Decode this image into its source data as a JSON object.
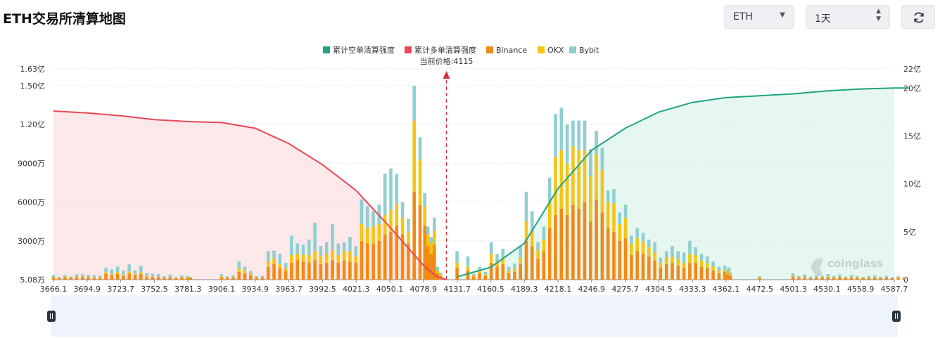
{
  "header": {
    "title": "ETH交易所清算地图",
    "symbol_select": "ETH",
    "range_select": "1天"
  },
  "watermark": "coinglass",
  "current_price_label": "当前价格:4115",
  "colors": {
    "short_cum": "#1fa383",
    "long_cum": "#e84755",
    "binance": "#f28a16",
    "okx": "#f5c515",
    "bybit": "#8fcfd0",
    "short_area": "#e6f6f0",
    "long_area": "#fde8ea"
  },
  "chart_data": {
    "type": "bar",
    "legend": [
      "累计空单清算强度",
      "累计多单清算强度",
      "Binance",
      "OKX",
      "Bybit"
    ],
    "legend_position": "top-center",
    "current_price": 4115,
    "x_ticks": [
      "3666.1",
      "3694.9",
      "3723.7",
      "3752.5",
      "3781.3",
      "3906.1",
      "3934.9",
      "3963.7",
      "3992.5",
      "4021.3",
      "4050.1",
      "4078.9",
      "4131.7",
      "4160.5",
      "4189.3",
      "4218.1",
      "4246.9",
      "4275.7",
      "4304.5",
      "4333.3",
      "4362.1",
      "4472.5",
      "4501.3",
      "4530.1",
      "4558.9",
      "4587.7"
    ],
    "y_left_ticks": [
      "1.63亿",
      "1.50亿",
      "1.20亿",
      "9000万",
      "6000万",
      "3000万",
      "5.08万"
    ],
    "y_left_range": [
      0.0508,
      16300
    ],
    "y_right_ticks": [
      "22亿",
      "20亿",
      "15亿",
      "10亿",
      "5亿",
      "0"
    ],
    "y_right_range": [
      0,
      22
    ],
    "bars_unit": "万",
    "bars": [
      {
        "x": 3666.1,
        "binance": 180,
        "okx": 40,
        "bybit": 150
      },
      {
        "x": 3671,
        "binance": 120,
        "okx": 30,
        "bybit": 80
      },
      {
        "x": 3676,
        "binance": 200,
        "okx": 50,
        "bybit": 120
      },
      {
        "x": 3681,
        "binance": 150,
        "okx": 40,
        "bybit": 60
      },
      {
        "x": 3686,
        "binance": 200,
        "okx": 60,
        "bybit": 160
      },
      {
        "x": 3691,
        "binance": 220,
        "okx": 60,
        "bybit": 140
      },
      {
        "x": 3696,
        "binance": 180,
        "okx": 50,
        "bybit": 150
      },
      {
        "x": 3701,
        "binance": 160,
        "okx": 50,
        "bybit": 140
      },
      {
        "x": 3706,
        "binance": 150,
        "okx": 40,
        "bybit": 120
      },
      {
        "x": 3711,
        "binance": 450,
        "okx": 120,
        "bybit": 350
      },
      {
        "x": 3716,
        "binance": 350,
        "okx": 100,
        "bybit": 350
      },
      {
        "x": 3721,
        "binance": 450,
        "okx": 120,
        "bybit": 450
      },
      {
        "x": 3726,
        "binance": 300,
        "okx": 100,
        "bybit": 300
      },
      {
        "x": 3731,
        "binance": 480,
        "okx": 150,
        "bybit": 550
      },
      {
        "x": 3736,
        "binance": 350,
        "okx": 100,
        "bybit": 280
      },
      {
        "x": 3741,
        "binance": 450,
        "okx": 120,
        "bybit": 500
      },
      {
        "x": 3746,
        "binance": 230,
        "okx": 60,
        "bybit": 200
      },
      {
        "x": 3751,
        "binance": 200,
        "okx": 60,
        "bybit": 200
      },
      {
        "x": 3756,
        "binance": 180,
        "okx": 50,
        "bybit": 200
      },
      {
        "x": 3761,
        "binance": 130,
        "okx": 40,
        "bybit": 100
      },
      {
        "x": 3766,
        "binance": 180,
        "okx": 50,
        "bybit": 150
      },
      {
        "x": 3771,
        "binance": 110,
        "okx": 30,
        "bybit": 60
      },
      {
        "x": 3776,
        "binance": 170,
        "okx": 50,
        "bybit": 120
      },
      {
        "x": 3781,
        "binance": 150,
        "okx": 40,
        "bybit": 100
      },
      {
        "x": 3791,
        "binance": 130,
        "okx": 30,
        "bybit": 60
      },
      {
        "x": 3906,
        "binance": 200,
        "okx": 60,
        "bybit": 180
      },
      {
        "x": 3911,
        "binance": 130,
        "okx": 40,
        "bybit": 80
      },
      {
        "x": 3916,
        "binance": 180,
        "okx": 50,
        "bybit": 120
      },
      {
        "x": 3921,
        "binance": 600,
        "okx": 250,
        "bybit": 550
      },
      {
        "x": 3926,
        "binance": 500,
        "okx": 200,
        "bybit": 300
      },
      {
        "x": 3931,
        "binance": 350,
        "okx": 100,
        "bybit": 200
      },
      {
        "x": 3936,
        "binance": 150,
        "okx": 40,
        "bybit": 80
      },
      {
        "x": 3941,
        "binance": 170,
        "okx": 50,
        "bybit": 80
      },
      {
        "x": 3946,
        "binance": 1000,
        "okx": 400,
        "bybit": 800
      },
      {
        "x": 3951,
        "binance": 1200,
        "okx": 450,
        "bybit": 600
      },
      {
        "x": 3956,
        "binance": 900,
        "okx": 300,
        "bybit": 800
      },
      {
        "x": 3961,
        "binance": 700,
        "okx": 200,
        "bybit": 400
      },
      {
        "x": 3966,
        "binance": 1300,
        "okx": 600,
        "bybit": 1500
      },
      {
        "x": 3971,
        "binance": 1500,
        "okx": 500,
        "bybit": 800
      },
      {
        "x": 3976,
        "binance": 1400,
        "okx": 500,
        "bybit": 800
      },
      {
        "x": 3981,
        "binance": 1300,
        "okx": 600,
        "bybit": 1200
      },
      {
        "x": 3986,
        "binance": 1500,
        "okx": 700,
        "bybit": 2200
      },
      {
        "x": 3991,
        "binance": 1200,
        "okx": 600,
        "bybit": 800
      },
      {
        "x": 3996,
        "binance": 1300,
        "okx": 700,
        "bybit": 900
      },
      {
        "x": 4001,
        "binance": 1500,
        "okx": 800,
        "bybit": 2000
      },
      {
        "x": 4006,
        "binance": 1300,
        "okx": 600,
        "bybit": 900
      },
      {
        "x": 4011,
        "binance": 1500,
        "okx": 700,
        "bybit": 700
      },
      {
        "x": 4016,
        "binance": 1400,
        "okx": 800,
        "bybit": 1100
      },
      {
        "x": 4021,
        "binance": 1300,
        "okx": 500,
        "bybit": 800
      },
      {
        "x": 4026,
        "binance": 3000,
        "okx": 1300,
        "bybit": 1900
      },
      {
        "x": 4031,
        "binance": 2800,
        "okx": 1200,
        "bybit": 1700
      },
      {
        "x": 4036,
        "binance": 2800,
        "okx": 1300,
        "bybit": 1200
      },
      {
        "x": 4041,
        "binance": 3000,
        "okx": 1300,
        "bybit": 1500
      },
      {
        "x": 4046,
        "binance": 3500,
        "okx": 1500,
        "bybit": 3200
      },
      {
        "x": 4051,
        "binance": 3700,
        "okx": 1700,
        "bybit": 3200
      },
      {
        "x": 4056,
        "binance": 4200,
        "okx": 1700,
        "bybit": 2300
      },
      {
        "x": 4061,
        "binance": 3500,
        "okx": 1300,
        "bybit": 1200
      },
      {
        "x": 4066,
        "binance": 2800,
        "okx": 900,
        "bybit": 1000
      },
      {
        "x": 4071,
        "binance": 6800,
        "okx": 5500,
        "bybit": 2700
      },
      {
        "x": 4076,
        "binance": 5800,
        "okx": 3500,
        "bybit": 1700
      },
      {
        "x": 4081,
        "binance": 4200,
        "okx": 1500,
        "bybit": 1000
      },
      {
        "x": 4086,
        "binance": 2600,
        "okx": 900,
        "bybit": 600
      },
      {
        "x": 4091,
        "binance": 2000,
        "okx": 800,
        "bybit": 500
      },
      {
        "x": 4096,
        "binance": 2700,
        "okx": 1100,
        "bybit": 1000
      },
      {
        "x": 4101,
        "binance": 500,
        "okx": 200,
        "bybit": 300
      },
      {
        "x": 4106,
        "binance": 300,
        "okx": 100,
        "bybit": 150
      },
      {
        "x": 4131.7,
        "binance": 900,
        "okx": 400,
        "bybit": 900
      },
      {
        "x": 4141,
        "binance": 700,
        "okx": 300,
        "bybit": 800
      },
      {
        "x": 4146,
        "binance": 250,
        "okx": 100,
        "bybit": 100
      },
      {
        "x": 4151,
        "binance": 500,
        "okx": 200,
        "bybit": 300
      },
      {
        "x": 4156,
        "binance": 300,
        "okx": 100,
        "bybit": 200
      },
      {
        "x": 4161,
        "binance": 1300,
        "okx": 700,
        "bybit": 900
      },
      {
        "x": 4166,
        "binance": 1000,
        "okx": 400,
        "bybit": 600
      },
      {
        "x": 4171,
        "binance": 1200,
        "okx": 500,
        "bybit": 700
      },
      {
        "x": 4176,
        "binance": 500,
        "okx": 200,
        "bybit": 300
      },
      {
        "x": 4181,
        "binance": 600,
        "okx": 250,
        "bybit": 400
      },
      {
        "x": 4186,
        "binance": 1200,
        "okx": 500,
        "bybit": 900
      },
      {
        "x": 4191,
        "binance": 3000,
        "okx": 1500,
        "bybit": 2300
      },
      {
        "x": 4196,
        "binance": 2600,
        "okx": 1200,
        "bybit": 1500
      },
      {
        "x": 4201,
        "binance": 1600,
        "okx": 700,
        "bybit": 600
      },
      {
        "x": 4206,
        "binance": 2200,
        "okx": 900,
        "bybit": 1000
      },
      {
        "x": 4211,
        "binance": 4000,
        "okx": 2000,
        "bybit": 1900
      },
      {
        "x": 4216,
        "binance": 5000,
        "okx": 4500,
        "bybit": 3300
      },
      {
        "x": 4221,
        "binance": 5500,
        "okx": 4500,
        "bybit": 3300
      },
      {
        "x": 4226,
        "binance": 5000,
        "okx": 4000,
        "bybit": 3000
      },
      {
        "x": 4231,
        "binance": 5800,
        "okx": 4500,
        "bybit": 2000
      },
      {
        "x": 4236,
        "binance": 5500,
        "okx": 4500,
        "bybit": 2300
      },
      {
        "x": 4241,
        "binance": 6000,
        "okx": 4000,
        "bybit": 2300
      },
      {
        "x": 4246,
        "binance": 4500,
        "okx": 3500,
        "bybit": 2100
      },
      {
        "x": 4251,
        "binance": 6200,
        "okx": 3500,
        "bybit": 1800
      },
      {
        "x": 4256,
        "binance": 5200,
        "okx": 3300,
        "bybit": 1700
      },
      {
        "x": 4261,
        "binance": 4000,
        "okx": 2000,
        "bybit": 900
      },
      {
        "x": 4266,
        "binance": 3700,
        "okx": 2200,
        "bybit": 1100
      },
      {
        "x": 4271,
        "binance": 3000,
        "okx": 1300,
        "bybit": 900
      },
      {
        "x": 4276,
        "binance": 3200,
        "okx": 1600,
        "bybit": 1000
      },
      {
        "x": 4281,
        "binance": 1900,
        "okx": 900,
        "bybit": 600
      },
      {
        "x": 4286,
        "binance": 2200,
        "okx": 1000,
        "bybit": 800
      },
      {
        "x": 4291,
        "binance": 2000,
        "okx": 900,
        "bybit": 700
      },
      {
        "x": 4296,
        "binance": 1800,
        "okx": 700,
        "bybit": 600
      },
      {
        "x": 4301,
        "binance": 1500,
        "okx": 600,
        "bybit": 800
      },
      {
        "x": 4306,
        "binance": 900,
        "okx": 400,
        "bybit": 400
      },
      {
        "x": 4311,
        "binance": 1200,
        "okx": 500,
        "bybit": 500
      },
      {
        "x": 4316,
        "binance": 1300,
        "okx": 500,
        "bybit": 800
      },
      {
        "x": 4321,
        "binance": 1100,
        "okx": 500,
        "bybit": 600
      },
      {
        "x": 4326,
        "binance": 900,
        "okx": 400,
        "bybit": 800
      },
      {
        "x": 4331,
        "binance": 1300,
        "okx": 700,
        "bybit": 1000
      },
      {
        "x": 4336,
        "binance": 1300,
        "okx": 600,
        "bybit": 600
      },
      {
        "x": 4341,
        "binance": 1000,
        "okx": 500,
        "bybit": 500
      },
      {
        "x": 4346,
        "binance": 900,
        "okx": 400,
        "bybit": 500
      },
      {
        "x": 4351,
        "binance": 700,
        "okx": 300,
        "bybit": 400
      },
      {
        "x": 4356,
        "binance": 500,
        "okx": 200,
        "bybit": 300
      },
      {
        "x": 4361,
        "binance": 600,
        "okx": 200,
        "bybit": 300
      },
      {
        "x": 4366,
        "binance": 400,
        "okx": 150,
        "bybit": 200
      },
      {
        "x": 4371,
        "binance": 500,
        "okx": 150,
        "bybit": 300
      },
      {
        "x": 4376,
        "binance": 300,
        "okx": 100,
        "bybit": 150
      },
      {
        "x": 4472,
        "binance": 150,
        "okx": 40,
        "bybit": 80
      },
      {
        "x": 4501,
        "binance": 250,
        "okx": 60,
        "bybit": 180
      },
      {
        "x": 4506,
        "binance": 150,
        "okx": 40,
        "bybit": 80
      },
      {
        "x": 4511,
        "binance": 200,
        "okx": 60,
        "bybit": 150
      },
      {
        "x": 4516,
        "binance": 120,
        "okx": 30,
        "bybit": 80
      },
      {
        "x": 4521,
        "binance": 180,
        "okx": 50,
        "bybit": 120
      },
      {
        "x": 4526,
        "binance": 150,
        "okx": 40,
        "bybit": 100
      },
      {
        "x": 4531,
        "binance": 200,
        "okx": 60,
        "bybit": 180
      },
      {
        "x": 4536,
        "binance": 150,
        "okx": 40,
        "bybit": 100
      },
      {
        "x": 4541,
        "binance": 200,
        "okx": 50,
        "bybit": 150
      },
      {
        "x": 4546,
        "binance": 130,
        "okx": 30,
        "bybit": 80
      },
      {
        "x": 4551,
        "binance": 180,
        "okx": 50,
        "bybit": 130
      },
      {
        "x": 4556,
        "binance": 150,
        "okx": 40,
        "bybit": 100
      },
      {
        "x": 4561,
        "binance": 120,
        "okx": 30,
        "bybit": 70
      },
      {
        "x": 4566,
        "binance": 150,
        "okx": 40,
        "bybit": 100
      },
      {
        "x": 4571,
        "binance": 180,
        "okx": 50,
        "bybit": 100
      },
      {
        "x": 4576,
        "binance": 130,
        "okx": 30,
        "bybit": 80
      },
      {
        "x": 4581,
        "binance": 160,
        "okx": 40,
        "bybit": 100
      },
      {
        "x": 4586,
        "binance": 120,
        "okx": 30,
        "bybit": 60
      },
      {
        "x": 4591,
        "binance": 140,
        "okx": 40,
        "bybit": 80
      },
      {
        "x": 4596,
        "binance": 110,
        "okx": 30,
        "bybit": 60
      }
    ],
    "cum_long_unit": "亿",
    "cum_long": [
      {
        "x": 3666.1,
        "y": 17.6
      },
      {
        "x": 3694.9,
        "y": 17.4
      },
      {
        "x": 3723.7,
        "y": 17.1
      },
      {
        "x": 3752.5,
        "y": 16.7
      },
      {
        "x": 3781.3,
        "y": 16.5
      },
      {
        "x": 3906.1,
        "y": 16.4
      },
      {
        "x": 3934.9,
        "y": 15.8
      },
      {
        "x": 3963.7,
        "y": 14.2
      },
      {
        "x": 3992.5,
        "y": 12.0
      },
      {
        "x": 4021.3,
        "y": 9.3
      },
      {
        "x": 4050.1,
        "y": 5.5
      },
      {
        "x": 4078.9,
        "y": 1.5
      },
      {
        "x": 4100,
        "y": 0.3
      },
      {
        "x": 4115,
        "y": 0
      }
    ],
    "cum_short_unit": "亿",
    "cum_short": [
      {
        "x": 4131.7,
        "y": 0.3
      },
      {
        "x": 4160.5,
        "y": 1.3
      },
      {
        "x": 4189.3,
        "y": 3.8
      },
      {
        "x": 4218.1,
        "y": 9.5
      },
      {
        "x": 4246.9,
        "y": 13.5
      },
      {
        "x": 4275.7,
        "y": 15.8
      },
      {
        "x": 4304.5,
        "y": 17.5
      },
      {
        "x": 4333.3,
        "y": 18.5
      },
      {
        "x": 4362.1,
        "y": 19.0
      },
      {
        "x": 4472.5,
        "y": 19.2
      },
      {
        "x": 4501.3,
        "y": 19.4
      },
      {
        "x": 4530.1,
        "y": 19.7
      },
      {
        "x": 4558.9,
        "y": 19.9
      },
      {
        "x": 4587.7,
        "y": 20.0
      }
    ]
  }
}
